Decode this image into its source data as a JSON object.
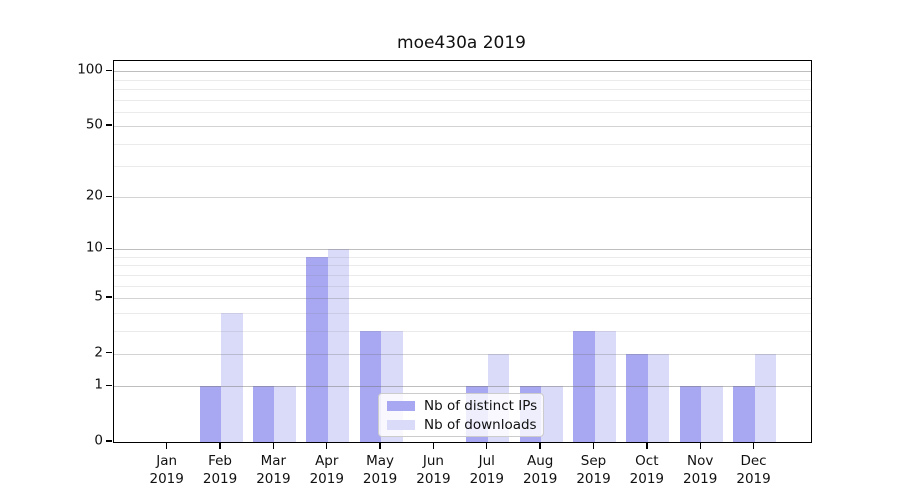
{
  "title": "moe430a 2019",
  "chart_data": {
    "type": "bar",
    "title": "moe430a 2019",
    "categories": [
      "Jan 2019",
      "Feb 2019",
      "Mar 2019",
      "Apr 2019",
      "May 2019",
      "Jun 2019",
      "Jul 2019",
      "Aug 2019",
      "Sep 2019",
      "Oct 2019",
      "Nov 2019",
      "Dec 2019"
    ],
    "series": [
      {
        "name": "Nb of distinct IPs",
        "color": "#a8a8f2",
        "values": [
          0,
          1,
          1,
          9,
          3,
          0,
          1,
          1,
          3,
          2,
          1,
          1
        ]
      },
      {
        "name": "Nb of downloads",
        "color": "#dadaf9",
        "values": [
          0,
          4,
          1,
          10,
          3,
          0,
          2,
          1,
          3,
          2,
          1,
          2
        ]
      }
    ],
    "xlabel": "",
    "ylabel": "",
    "y_ticks": [
      0,
      1,
      2,
      5,
      10,
      20,
      50,
      100
    ],
    "y_scale": "log10(1+x)",
    "ylim": [
      0,
      115
    ],
    "grid_minor_values": [
      3,
      4,
      6,
      7,
      8,
      9,
      30,
      40,
      60,
      70,
      80,
      90
    ],
    "grid": "horizontal major and minor gridlines, drawn over bars",
    "legend_position": "inside plot, lower middle-right"
  },
  "legend": {
    "entries": [
      {
        "label": "Nb of distinct IPs",
        "color": "#a8a8f2"
      },
      {
        "label": "Nb of downloads",
        "color": "#dadaf9"
      }
    ]
  },
  "colors": {
    "distinct_ips_bar": "#a8a8f2",
    "downloads_bar": "#dadaf9",
    "axis_spine": "#000000",
    "grid_power_line": "#c3c3c3",
    "grid_major_line": "#d2d2d2",
    "grid_minor_line": "#e9e9e9",
    "background": "#ffffff",
    "text": "#111111"
  }
}
